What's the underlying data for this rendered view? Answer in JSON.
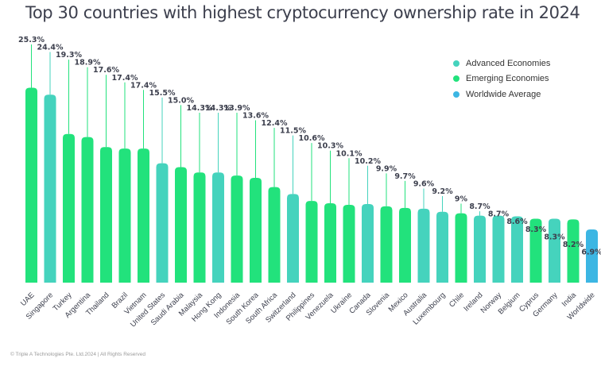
{
  "chart_data": {
    "type": "bar",
    "title": "Top 30 countries with highest cryptocurrency ownership rate in 2024",
    "categories": [
      "UAE",
      "Singapore",
      "Turkey",
      "Argentina",
      "Thailand",
      "Brazil",
      "Vietnam",
      "United States",
      "Saudi Arabia",
      "Malaysia",
      "Hong Kong",
      "Indonesia",
      "South Korea",
      "South Africa",
      "Switzerland",
      "Philippines",
      "Venezuela",
      "Ukraine",
      "Canada",
      "Slovenia",
      "Mexico",
      "Australia",
      "Luxembourg",
      "Chile",
      "Ireland",
      "Norway",
      "Belgium",
      "Cyprus",
      "Germany",
      "India",
      "Worldwide"
    ],
    "values": [
      25.3,
      24.4,
      19.3,
      18.9,
      17.6,
      17.4,
      17.4,
      15.5,
      15.0,
      14.3,
      14.3,
      13.9,
      13.6,
      12.4,
      11.5,
      10.6,
      10.3,
      10.1,
      10.2,
      9.9,
      9.7,
      9.6,
      9.2,
      9.0,
      8.7,
      8.7,
      8.6,
      8.3,
      8.3,
      8.2,
      6.9
    ],
    "value_labels": [
      "25.3%",
      "24.4%",
      "19.3%",
      "18.9%",
      "17.6%",
      "17.4%",
      "17.4%",
      "15.5%",
      "15.0%",
      "14.3%",
      "14.3%",
      "13.9%",
      "13.6%",
      "12.4%",
      "11.5%",
      "10.6%",
      "10.3%",
      "10.1%",
      "10.2%",
      "9.9%",
      "9.7%",
      "9.6%",
      "9.2%",
      "9%",
      "8.7%",
      "8.7%",
      "8.6%",
      "8.3%",
      "8.3%",
      "8.2%",
      "6.9%"
    ],
    "groups": [
      "emerging",
      "advanced",
      "emerging",
      "emerging",
      "emerging",
      "emerging",
      "emerging",
      "advanced",
      "emerging",
      "emerging",
      "advanced",
      "emerging",
      "emerging",
      "emerging",
      "advanced",
      "emerging",
      "emerging",
      "emerging",
      "advanced",
      "emerging",
      "emerging",
      "advanced",
      "advanced",
      "emerging",
      "advanced",
      "advanced",
      "advanced",
      "emerging",
      "advanced",
      "emerging",
      "worldwide"
    ],
    "label_rows": [
      0,
      1,
      2,
      3,
      4,
      5,
      6,
      7,
      8,
      9,
      9,
      9,
      10,
      11,
      12,
      13,
      14,
      15,
      16,
      17,
      18,
      19,
      20,
      21,
      22,
      23,
      24,
      25,
      26,
      27,
      28
    ],
    "legend": [
      {
        "key": "advanced",
        "label": "Advanced Economies",
        "color": "#45d3bd"
      },
      {
        "key": "emerging",
        "label": "Emerging Economies",
        "color": "#22e27c"
      },
      {
        "key": "worldwide",
        "label": "Worldwide Average",
        "color": "#3cb6e3"
      }
    ],
    "ylim": [
      0,
      27
    ],
    "xlabel": "",
    "ylabel": "",
    "legend_position": "top-right"
  },
  "footer": "© Triple A Technologies Pte. Ltd.2024 | All Rights Reserved"
}
